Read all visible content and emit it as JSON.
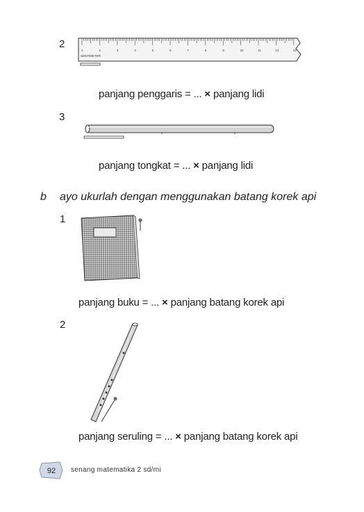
{
  "items": [
    {
      "num": "2",
      "eq_left": "panjang penggaris = ...",
      "times": "×",
      "eq_right": "panjang lidi"
    },
    {
      "num": "3",
      "eq_left": "panjang tongkat = ...",
      "times": "×",
      "eq_right": "panjang lidi"
    }
  ],
  "section_b": {
    "letter": "b",
    "instruction": "ayo ukurlah dengan menggunakan batang korek api",
    "items": [
      {
        "num": "1",
        "eq_left": "panjang buku  = ...",
        "times": "×",
        "eq_right": "panjang batang korek api"
      },
      {
        "num": "2",
        "eq_left": "panjang seruling = ...",
        "times": "×",
        "eq_right": "panjang batang korek api"
      }
    ]
  },
  "ruler": {
    "unit_label": "SENTIMETER",
    "ticks": [
      "1",
      "2",
      "3",
      "4",
      "5",
      "6",
      "7",
      "8",
      "9",
      "10",
      "11",
      "12",
      "13"
    ]
  },
  "footer": {
    "page_number": "92",
    "book_title": "senang matematika 2 sd/mi"
  }
}
